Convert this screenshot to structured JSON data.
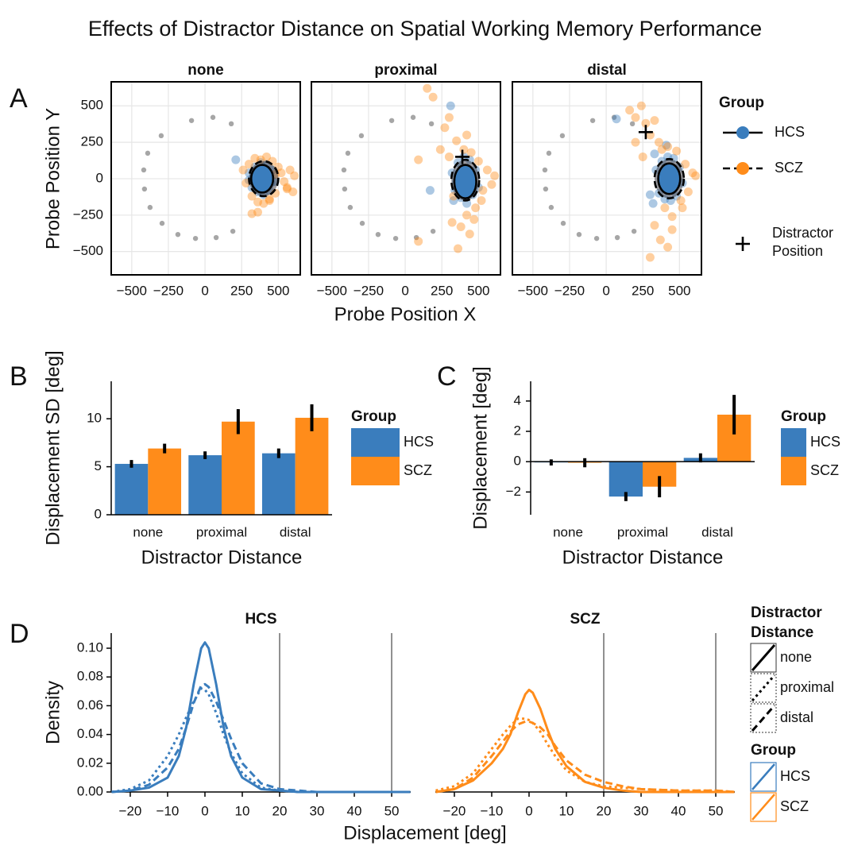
{
  "title": "Effects of Distractor Distance on Spatial Working Memory Performance",
  "chart_data": [
    {
      "type": "scatter",
      "panel": "A",
      "xlabel": "Probe Position X",
      "ylabel": "Probe Position Y",
      "xlim": [
        -640,
        650
      ],
      "ylim": [
        -660,
        665
      ],
      "xticks": [
        {
          "value": -500,
          "label": "−500"
        },
        {
          "value": -250,
          "label": "−250"
        },
        0,
        250,
        500
      ],
      "yticks": [
        {
          "value": -500,
          "label": "−500"
        },
        {
          "value": -250,
          "label": "−250"
        },
        0,
        250,
        500
      ],
      "grid": true,
      "legend_title": "Group",
      "groups": [
        {
          "name": "HCS",
          "color": "#3a7dbd",
          "dash": "solid"
        },
        {
          "name": "SCZ",
          "color": "#ff8c1a",
          "dash": "dashed"
        }
      ],
      "distractor_label": "Distractor Position",
      "targets": {
        "color": "#a6a6a6",
        "x": [
          -92,
          54,
          179,
          -299,
          -391,
          -418,
          -413,
          -375,
          -293,
          -185,
          -65,
          76,
          190
        ],
        "y": [
          399,
          421,
          377,
          295,
          175,
          60,
          -71,
          -197,
          -306,
          -383,
          -410,
          -404,
          -361
        ]
      },
      "facets": [
        {
          "title": "none",
          "series": [
            {
              "x": [
                300,
                320,
                340,
                360,
                380,
                400,
                420,
                440,
                460,
                470,
                330,
                350,
                410,
                450,
                300,
                420,
                380,
                360,
                210
              ],
              "y": [
                40,
                -60,
                80,
                -90,
                110,
                -110,
                100,
                -80,
                60,
                -20,
                10,
                -20,
                30,
                -30,
                -10,
                -50,
                60,
                0,
                130
              ]
            },
            {
              "x": [
                260,
                280,
                300,
                320,
                340,
                360,
                380,
                400,
                420,
                440,
                460,
                480,
                500,
                520,
                540,
                560,
                580,
                600,
                610,
                320,
                360,
                440,
                480,
                560
              ],
              "y": [
                60,
                -30,
                100,
                -120,
                140,
                -160,
                130,
                -170,
                150,
                -140,
                120,
                -100,
                80,
                40,
                -20,
                -60,
                60,
                -90,
                20,
                -240,
                -230,
                -150,
                30,
                -70
              ]
            }
          ],
          "ellipses": [
            {
              "cx": 390,
              "cy": 0,
              "rx": 75,
              "ry": 95
            },
            {
              "cx": 400,
              "cy": 0,
              "rx": 100,
              "ry": 120
            }
          ]
        },
        {
          "title": "proximal",
          "series": [
            {
              "x": [
                320,
                340,
                360,
                380,
                400,
                420,
                440,
                460,
                480,
                350,
                410,
                450,
                380,
                430,
                170,
                310,
                330,
                500
              ],
              "y": [
                40,
                -80,
                110,
                -130,
                150,
                -170,
                130,
                -110,
                60,
                -20,
                -40,
                10,
                30,
                -60,
                -80,
                500,
                -150,
                -60
              ]
            },
            {
              "x": [
                90,
                150,
                190,
                240,
                270,
                300,
                320,
                350,
                380,
                400,
                420,
                450,
                480,
                500,
                530,
                560,
                590,
                610,
                300,
                360,
                440,
                520,
                330,
                90,
                420,
                470
              ],
              "y": [
                130,
                620,
                560,
                200,
                350,
                150,
                -300,
                260,
                -330,
                200,
                -250,
                180,
                -200,
                120,
                -80,
                60,
                -40,
                20,
                420,
                -480,
                -380,
                -150,
                -120,
                -430,
                300,
                -280
              ]
            }
          ],
          "ellipses": [
            {
              "cx": 410,
              "cy": -20,
              "rx": 75,
              "ry": 115
            },
            {
              "cx": 410,
              "cy": -10,
              "rx": 95,
              "ry": 140
            }
          ],
          "distractor": {
            "x": 390,
            "y": 150
          }
        },
        {
          "title": "distal",
          "series": [
            {
              "x": [
                340,
                360,
                380,
                400,
                420,
                440,
                460,
                480,
                500,
                520,
                390,
                450,
                300,
                320,
                410,
                70,
                330
              ],
              "y": [
                60,
                -100,
                120,
                -140,
                150,
                -150,
                140,
                -120,
                80,
                -30,
                0,
                30,
                -110,
                -170,
                230,
                410,
                170
              ]
            },
            {
              "x": [
                160,
                200,
                240,
                270,
                300,
                330,
                360,
                380,
                400,
                420,
                450,
                480,
                510,
                540,
                560,
                590,
                610,
                330,
                370,
                450,
                520,
                250,
                420,
                300,
                200
              ],
              "y": [
                470,
                420,
                500,
                380,
                300,
                400,
                250,
                200,
                -200,
                220,
                -260,
                190,
                -150,
                100,
                -90,
                40,
                20,
                -320,
                -420,
                -350,
                -200,
                150,
                -470,
                -540,
                250
              ]
            }
          ],
          "ellipses": [
            {
              "cx": 430,
              "cy": 0,
              "rx": 75,
              "ry": 105
            },
            {
              "cx": 430,
              "cy": 0,
              "rx": 100,
              "ry": 135
            }
          ],
          "distractor": {
            "x": 270,
            "y": 320
          }
        }
      ]
    },
    {
      "type": "bar",
      "panel": "B",
      "xlabel": "Distractor Distance",
      "ylabel": "Displacement SD [deg]",
      "categories": [
        "none",
        "proximal",
        "distal"
      ],
      "ylim": [
        0,
        13.9
      ],
      "yticks": [
        0,
        5,
        10
      ],
      "legend_title": "Group",
      "series": [
        {
          "name": "HCS",
          "color": "#3a7dbd",
          "values": [
            5.3,
            6.2,
            6.4
          ],
          "errors": [
            0.4,
            0.4,
            0.5
          ]
        },
        {
          "name": "SCZ",
          "color": "#ff8c1a",
          "values": [
            6.9,
            9.7,
            10.1
          ],
          "errors": [
            0.5,
            1.3,
            1.4
          ]
        }
      ]
    },
    {
      "type": "bar",
      "panel": "C",
      "xlabel": "Distractor Distance",
      "ylabel": "Displacement [deg]",
      "categories": [
        "none",
        "proximal",
        "distal"
      ],
      "ylim": [
        -3.5,
        5.3
      ],
      "yticks": [
        {
          "value": -2,
          "label": "−2"
        },
        0,
        2,
        4
      ],
      "legend_title": "Group",
      "series": [
        {
          "name": "HCS",
          "color": "#3a7dbd",
          "values": [
            -0.05,
            -2.3,
            0.25
          ],
          "errors": [
            0.2,
            0.3,
            0.3
          ]
        },
        {
          "name": "SCZ",
          "color": "#ff8c1a",
          "values": [
            -0.07,
            -1.65,
            3.1
          ],
          "errors": [
            0.3,
            0.7,
            1.3
          ]
        }
      ]
    },
    {
      "type": "line",
      "panel": "D",
      "xlabel": "Displacement [deg]",
      "ylabel": "Density",
      "x": [
        -25,
        -20,
        -15,
        -10,
        -7,
        -5,
        -3,
        -1,
        0,
        1,
        3,
        5,
        7,
        10,
        15,
        20,
        25,
        30,
        40,
        50,
        55
      ],
      "xlim": [
        -25.1,
        55.1
      ],
      "xticks": [
        {
          "value": -20,
          "label": "−20"
        },
        {
          "value": -10,
          "label": "−10"
        },
        0,
        10,
        20,
        30,
        40,
        50
      ],
      "ylim": [
        0,
        0.1105
      ],
      "yticks": [
        {
          "value": 0,
          "label": "0.00"
        },
        {
          "value": 0.02,
          "label": "0.02"
        },
        {
          "value": 0.04,
          "label": "0.04"
        },
        {
          "value": 0.06,
          "label": "0.06"
        },
        {
          "value": 0.08,
          "label": "0.08"
        },
        {
          "value": 0.1,
          "label": "0.10"
        }
      ],
      "vlines": [
        20,
        50
      ],
      "linestyle_title": "Distractor Distance",
      "linestyles": [
        {
          "name": "none",
          "dash": "solid"
        },
        {
          "name": "proximal",
          "dash": "dotted"
        },
        {
          "name": "distal",
          "dash": "dashed"
        }
      ],
      "legend_title": "Group",
      "facets": [
        {
          "title": "HCS",
          "color": "#3a7dbd",
          "series": [
            {
              "values": [
                0,
                0.001,
                0.003,
                0.01,
                0.025,
                0.045,
                0.075,
                0.1,
                0.104,
                0.1,
                0.075,
                0.045,
                0.025,
                0.01,
                0.002,
                0.001,
                0,
                0,
                0,
                0,
                0
              ]
            },
            {
              "values": [
                0,
                0.002,
                0.008,
                0.025,
                0.04,
                0.052,
                0.063,
                0.072,
                0.071,
                0.068,
                0.055,
                0.04,
                0.027,
                0.013,
                0.003,
                0.001,
                0,
                0,
                0,
                0,
                0
              ]
            },
            {
              "values": [
                0,
                0.001,
                0.005,
                0.017,
                0.03,
                0.045,
                0.062,
                0.074,
                0.075,
                0.073,
                0.063,
                0.05,
                0.037,
                0.02,
                0.006,
                0.002,
                0.001,
                0,
                0,
                0,
                0
              ]
            }
          ]
        },
        {
          "title": "SCZ",
          "color": "#ff8c1a",
          "series": [
            {
              "values": [
                0,
                0.002,
                0.008,
                0.02,
                0.03,
                0.04,
                0.055,
                0.068,
                0.071,
                0.069,
                0.058,
                0.043,
                0.03,
                0.018,
                0.007,
                0.003,
                0.001,
                0,
                0,
                0,
                0
              ]
            },
            {
              "values": [
                0.001,
                0.004,
                0.013,
                0.03,
                0.04,
                0.046,
                0.051,
                0.051,
                0.05,
                0.048,
                0.042,
                0.033,
                0.025,
                0.015,
                0.007,
                0.004,
                0.003,
                0.002,
                0.001,
                0.001,
                0
              ]
            },
            {
              "values": [
                0,
                0.002,
                0.01,
                0.025,
                0.035,
                0.042,
                0.047,
                0.049,
                0.049,
                0.048,
                0.045,
                0.04,
                0.032,
                0.022,
                0.012,
                0.007,
                0.004,
                0.002,
                0.001,
                0.001,
                0
              ]
            }
          ]
        }
      ]
    }
  ]
}
